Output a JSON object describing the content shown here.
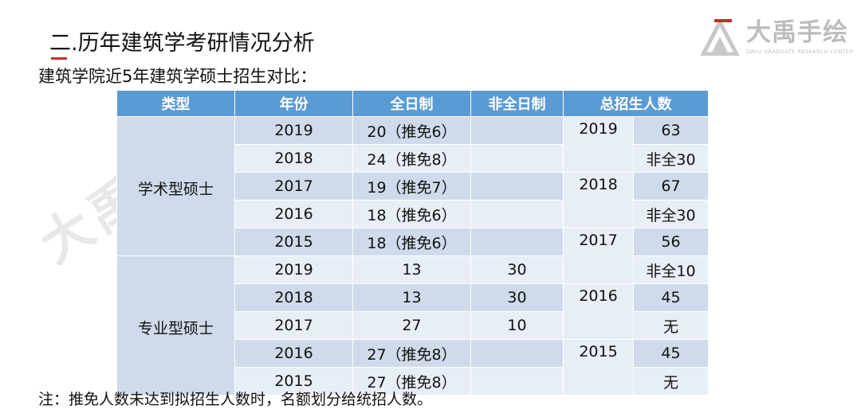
{
  "header": {
    "title": "二.历年建筑学考研情况分析",
    "subtitle": "建筑学院近5年建筑学硕士招生对比："
  },
  "logo": {
    "name": "大禹手绘",
    "sub": "DAYU GRADUATE RESEARCH CENTER",
    "accent": "#c0302a"
  },
  "watermark": "大禹手绘",
  "table": {
    "headers": [
      "类型",
      "年份",
      "全日制",
      "非全日制",
      "总招生人数"
    ],
    "academic": {
      "type": "学术型硕士",
      "rows": [
        {
          "year": "2019",
          "full": "20（推免6）",
          "part": ""
        },
        {
          "year": "2018",
          "full": "24（推免8）",
          "part": ""
        },
        {
          "year": "2017",
          "full": "19（推免7）",
          "part": ""
        },
        {
          "year": "2016",
          "full": "18（推免6）",
          "part": ""
        },
        {
          "year": "2015",
          "full": "18（推免6）",
          "part": ""
        }
      ]
    },
    "professional": {
      "type": "专业型硕士",
      "rows": [
        {
          "year": "2019",
          "full": "13",
          "part": "30"
        },
        {
          "year": "2018",
          "full": "13",
          "part": "30"
        },
        {
          "year": "2017",
          "full": "27",
          "part": "10"
        },
        {
          "year": "2016",
          "full": "27（推免8）",
          "part": ""
        },
        {
          "year": "2015",
          "full": "27（推免8）",
          "part": ""
        }
      ]
    },
    "totals": [
      {
        "year": "2019",
        "count": "63",
        "part": "非全30"
      },
      {
        "year": "2018",
        "count": "67",
        "part": "非全30"
      },
      {
        "year": "2017",
        "count": "56",
        "part": "非全10"
      },
      {
        "year": "2016",
        "count": "45",
        "part": "无"
      },
      {
        "year": "2015",
        "count": "45",
        "part": "无"
      }
    ]
  },
  "note": "注：推免人数未达到拟招生人数时，名额划分给统招人数。",
  "colors": {
    "header_bg": "#5b9bd5",
    "band": "#cfdbea",
    "light": "#e8eef6"
  }
}
